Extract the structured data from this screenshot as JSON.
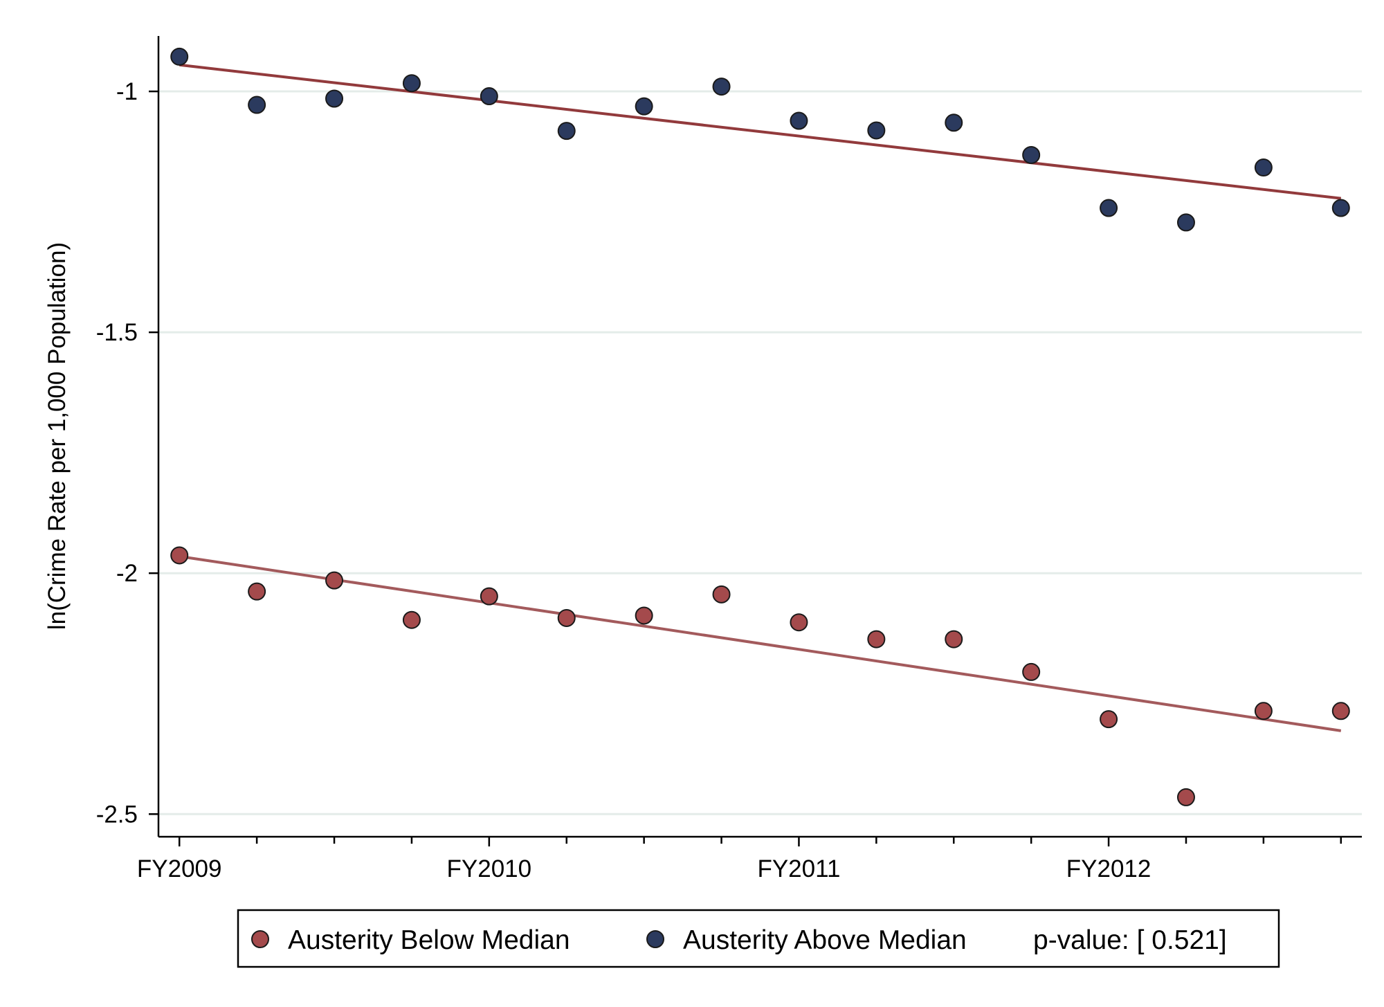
{
  "chart_data": {
    "type": "scatter",
    "title": "",
    "xlabel": "",
    "ylabel": "ln(Crime Rate per 1,000 Population)",
    "ylim": [
      -2.547,
      -0.885
    ],
    "xlim": [
      -0.27,
      15.27
    ],
    "y_ticks": [
      {
        "value": -1,
        "label": "-1"
      },
      {
        "value": -1.5,
        "label": "-1.5"
      },
      {
        "value": -2,
        "label": "-2"
      },
      {
        "value": -2.5,
        "label": "-2.5"
      }
    ],
    "x_major_ticks": [
      {
        "value": 0,
        "label": "FY2009"
      },
      {
        "value": 4,
        "label": "FY2010"
      },
      {
        "value": 8,
        "label": "FY2011"
      },
      {
        "value": 12,
        "label": "FY2012"
      }
    ],
    "x_minor_ticks": [
      1,
      2,
      3,
      5,
      6,
      7,
      9,
      10,
      11,
      13,
      14,
      15
    ],
    "grid": true,
    "legend_position": "bottom",
    "series": [
      {
        "name": "Austerity Below Median",
        "marker_color": "#a44a4c",
        "fit_color": "#a35a5c",
        "x": [
          0,
          1,
          2,
          3,
          4,
          5,
          6,
          7,
          8,
          9,
          10,
          11,
          12,
          13,
          14,
          15
        ],
        "values": [
          -1.963,
          -2.038,
          -2.015,
          -2.097,
          -2.048,
          -2.093,
          -2.088,
          -2.044,
          -2.102,
          -2.137,
          -2.137,
          -2.205,
          -2.303,
          -2.465,
          -2.286,
          -2.286
        ],
        "fit_line": {
          "x": [
            0,
            15
          ],
          "y": [
            -1.965,
            -2.327
          ]
        }
      },
      {
        "name": "Austerity Above Median",
        "marker_color": "#2b3a5e",
        "fit_color": "#923a3c",
        "x": [
          0,
          1,
          2,
          3,
          4,
          5,
          6,
          7,
          8,
          9,
          10,
          11,
          12,
          13,
          14,
          15
        ],
        "values": [
          -0.928,
          -1.028,
          -1.015,
          -0.983,
          -1.01,
          -1.082,
          -1.031,
          -0.99,
          -1.061,
          -1.081,
          -1.065,
          -1.132,
          -1.242,
          -1.272,
          -1.158,
          -1.242
        ],
        "fit_line": {
          "x": [
            0,
            15
          ],
          "y": [
            -0.945,
            -1.222
          ]
        }
      }
    ],
    "annotation": "p-value: [ 0.521]"
  },
  "legend": {
    "items": [
      {
        "label": "Austerity Below Median"
      },
      {
        "label": "Austerity Above Median"
      }
    ],
    "pvalue_text": "p-value: [ 0.521]"
  }
}
